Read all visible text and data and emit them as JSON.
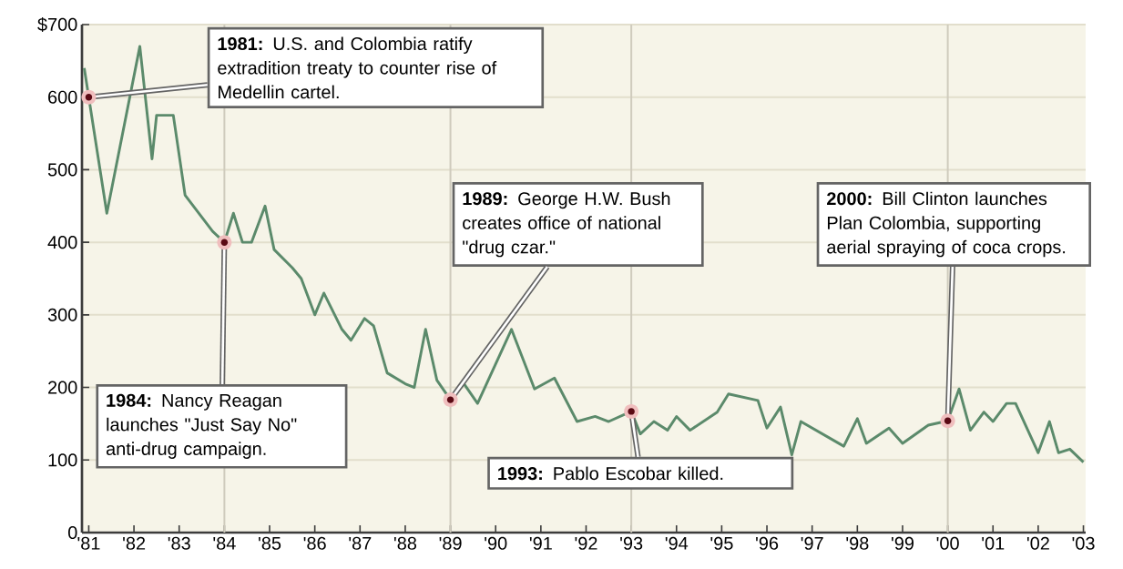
{
  "chart_data": {
    "type": "line",
    "color": "#5b8a6b",
    "marker": "none",
    "line_style": "solid",
    "grid": "y",
    "x": [
      1980.9,
      1981,
      1981.4,
      1982.13,
      1982.4,
      1982.5,
      1982.87,
      1983.13,
      1983.74,
      1984,
      1984.2,
      1984.4,
      1984.6,
      1984.9,
      1985.1,
      1985.5,
      1985.7,
      1986,
      1986.2,
      1986.6,
      1986.8,
      1987.1,
      1987.3,
      1987.6,
      1988,
      1988.2,
      1988.45,
      1988.7,
      1989,
      1989.3,
      1989.6,
      1990.35,
      1990.86,
      1991.3,
      1991.8,
      1992.2,
      1992.5,
      1993,
      1993.2,
      1993.5,
      1993.8,
      1994,
      1994.3,
      1994.9,
      1995.15,
      1995.8,
      1996,
      1996.3,
      1996.55,
      1996.75,
      1997.7,
      1998,
      1998.2,
      1998.7,
      1999,
      1999.57,
      2000,
      2000.25,
      2000.5,
      2000.8,
      2001,
      2001.3,
      2001.5,
      2002,
      2002.25,
      2002.45,
      2002.7,
      2003
    ],
    "values": [
      640,
      600,
      440,
      670,
      515,
      575,
      575,
      465,
      415,
      400,
      440,
      400,
      400,
      450,
      390,
      365,
      350,
      300,
      330,
      280,
      265,
      295,
      285,
      220,
      205,
      200,
      280,
      210,
      183,
      205,
      178,
      280,
      198,
      213,
      153,
      160,
      153,
      167,
      136,
      153,
      141,
      160,
      141,
      166,
      191,
      182,
      144,
      173,
      107,
      153,
      119,
      157,
      123,
      144,
      123,
      148,
      154,
      198,
      141,
      166,
      153,
      178,
      178,
      110,
      153,
      110,
      115,
      97
    ],
    "xlim": [
      1980.85,
      2003.05
    ],
    "ylim": [
      0,
      700
    ],
    "xticks": [
      {
        "value": 1981,
        "label": "'81"
      },
      {
        "value": 1982,
        "label": "'82"
      },
      {
        "value": 1983,
        "label": "'83"
      },
      {
        "value": 1984,
        "label": "'84"
      },
      {
        "value": 1985,
        "label": "'85"
      },
      {
        "value": 1986,
        "label": "'86"
      },
      {
        "value": 1987,
        "label": "'87"
      },
      {
        "value": 1988,
        "label": "'88"
      },
      {
        "value": 1989,
        "label": "'89"
      },
      {
        "value": 1990,
        "label": "'90"
      },
      {
        "value": 1991,
        "label": "'91"
      },
      {
        "value": 1992,
        "label": "'92"
      },
      {
        "value": 1993,
        "label": "'93"
      },
      {
        "value": 1994,
        "label": "'94"
      },
      {
        "value": 1995,
        "label": "'95"
      },
      {
        "value": 1996,
        "label": "'96"
      },
      {
        "value": 1997,
        "label": "'97"
      },
      {
        "value": 1998,
        "label": "'98"
      },
      {
        "value": 1999,
        "label": "'99"
      },
      {
        "value": 2000,
        "label": "'00"
      },
      {
        "value": 2001,
        "label": "'01"
      },
      {
        "value": 2002,
        "label": "'02"
      },
      {
        "value": 2003,
        "label": "'03"
      }
    ],
    "yticks": [
      0,
      100,
      200,
      300,
      400,
      500,
      600,
      {
        "value": 700,
        "label": "$700"
      }
    ],
    "ref_lines": [
      {
        "axis": "x",
        "value": 1984,
        "color": "#cfcbbd"
      },
      {
        "axis": "x",
        "value": 1989,
        "color": "#cfcbbd"
      },
      {
        "axis": "x",
        "value": 1993,
        "color": "#cfcbbd"
      },
      {
        "axis": "x",
        "value": 2000,
        "color": "#cfcbbd"
      }
    ],
    "annotations": [
      {
        "text": "**1981:** U.S. and Colombia ratify extradition treaty to counter rise of Medellin cartel.",
        "x": 1981,
        "y": 600
      },
      {
        "text": "**1984:** Nancy Reagan launches \"Just Say No\" anti-drug campaign.",
        "x": 1984,
        "y": 400
      },
      {
        "text": "**1989:** George H.W. Bush creates office of national \"drug czar.\"",
        "x": 1989,
        "y": 183
      },
      {
        "text": "**1993:** Pablo Escobar killed.",
        "x": 1993,
        "y": 167
      },
      {
        "text": "**2000:** Bill Clinton launches Plan Colombia, supporting aerial spraying of coca crops.",
        "x": 2000,
        "y": 154
      }
    ]
  }
}
